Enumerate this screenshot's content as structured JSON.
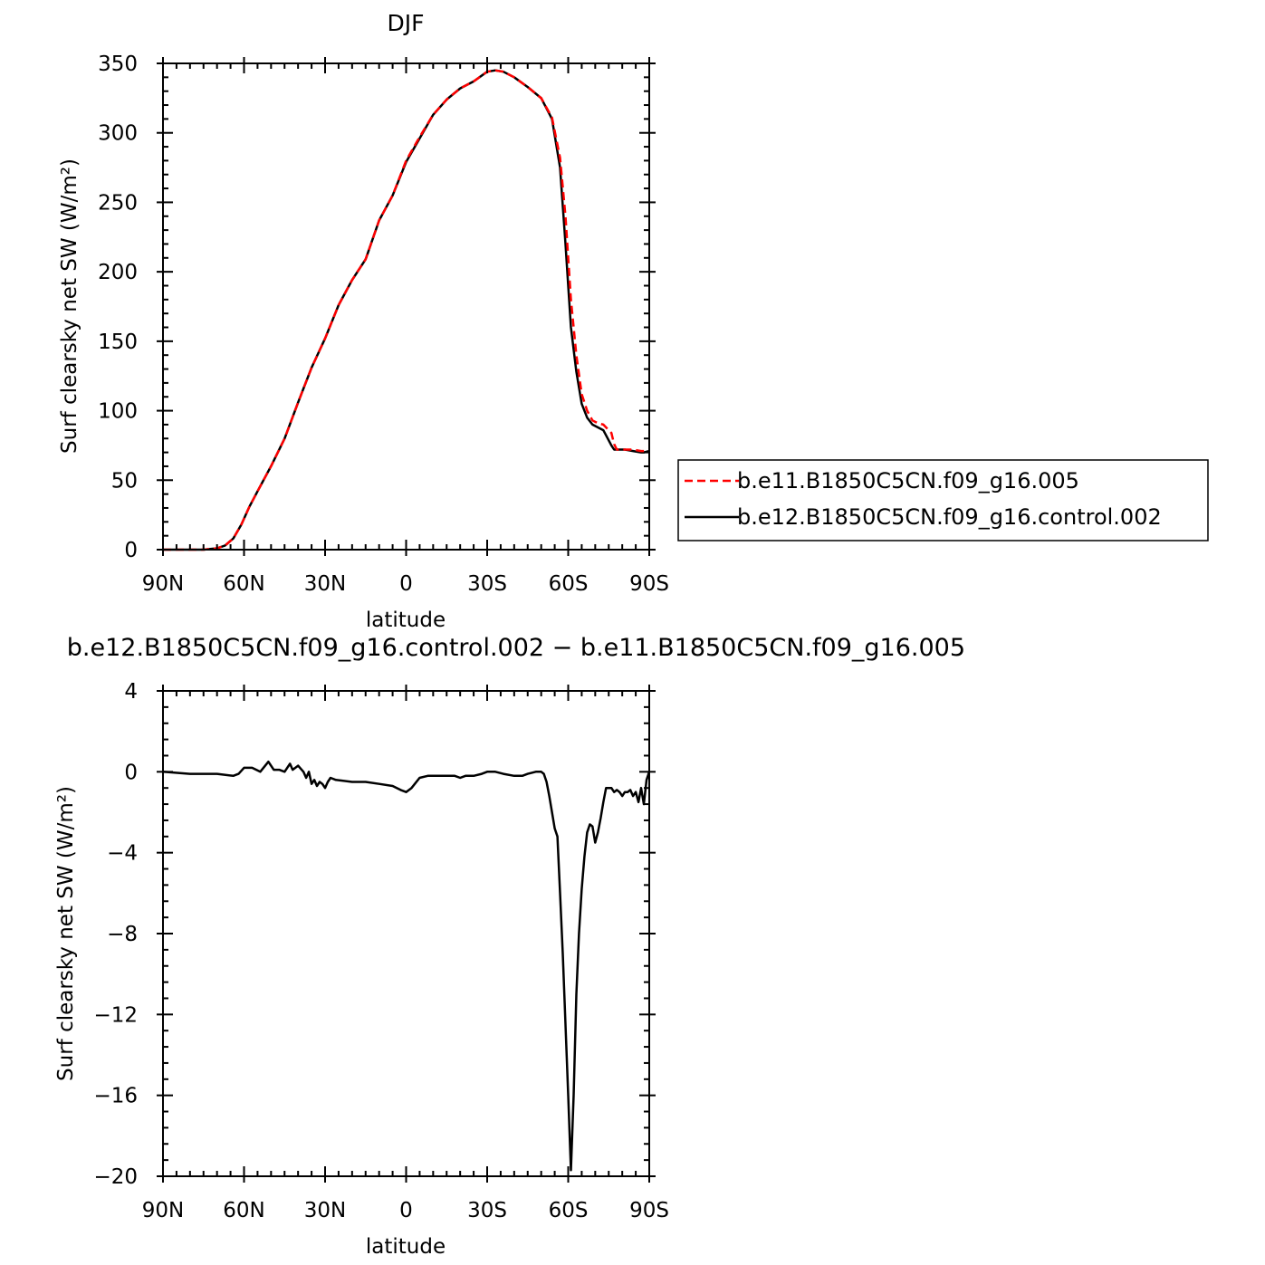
{
  "chart_data": [
    {
      "type": "line",
      "title": "DJF",
      "xlabel": "latitude",
      "ylabel": "Surf clearsky net SW (W/m²)",
      "xlim": [
        -90,
        90
      ],
      "ylim": [
        0,
        350
      ],
      "x_ticks": [
        -90,
        -60,
        -30,
        0,
        30,
        60,
        90
      ],
      "x_tick_labels": [
        "90N",
        "60N",
        "30N",
        "0",
        "30S",
        "60S",
        "90S"
      ],
      "y_ticks": [
        0,
        50,
        100,
        150,
        200,
        250,
        300,
        350
      ],
      "y_tick_labels": [
        "0",
        "50",
        "100",
        "150",
        "200",
        "250",
        "300",
        "350"
      ],
      "legend_position": "right",
      "series": [
        {
          "name": "b.e11.B1850C5CN.f09_g16.005",
          "color": "#ff0000",
          "dash": true,
          "x": [
            -90,
            -75,
            -70,
            -67,
            -64,
            -61,
            -58,
            -55,
            -50,
            -45,
            -40,
            -35,
            -30,
            -25,
            -20,
            -15,
            -10,
            -5,
            0,
            5,
            10,
            15,
            20,
            25,
            30,
            33,
            36,
            40,
            45,
            50,
            54,
            57,
            59,
            61,
            63,
            65,
            67,
            69,
            71,
            73,
            76,
            77,
            78,
            81,
            84,
            87,
            88,
            90
          ],
          "y": [
            0,
            0,
            1,
            3,
            8,
            18,
            31,
            42,
            60,
            80,
            106,
            131,
            152,
            176,
            194,
            209,
            237,
            255,
            280,
            297,
            313,
            324,
            332,
            337,
            344,
            345,
            344,
            340,
            333,
            325,
            311,
            282,
            240,
            180,
            140,
            112,
            100,
            93,
            91,
            90,
            84,
            76,
            72,
            72,
            72,
            71,
            71,
            71
          ]
        },
        {
          "name": "b.e12.B1850C5CN.f09_g16.control.002",
          "color": "#000000",
          "dash": false,
          "x": [
            -90,
            -75,
            -70,
            -67,
            -64,
            -61,
            -58,
            -55,
            -50,
            -45,
            -40,
            -35,
            -30,
            -25,
            -20,
            -15,
            -10,
            -5,
            0,
            5,
            10,
            15,
            20,
            25,
            30,
            33,
            36,
            40,
            45,
            50,
            54,
            57,
            59,
            61,
            63,
            65,
            67,
            69,
            71,
            73,
            76,
            77,
            78,
            81,
            84,
            87,
            88,
            90
          ],
          "y": [
            0,
            0,
            1,
            3,
            8,
            18,
            31,
            42,
            60,
            80,
            106,
            131,
            152,
            176,
            194,
            209,
            237,
            255,
            279,
            296,
            313,
            324,
            332,
            337,
            344,
            345,
            344,
            340,
            333,
            325,
            310,
            275,
            220,
            160,
            128,
            105,
            95,
            90,
            88,
            86,
            75,
            72,
            72,
            72,
            71,
            70,
            70,
            71
          ]
        }
      ]
    },
    {
      "type": "line",
      "title": "b.e12.B1850C5CN.f09_g16.control.002 − b.e11.B1850C5CN.f09_g16.005",
      "xlabel": "latitude",
      "ylabel": "Surf clearsky net SW (W/m²)",
      "xlim": [
        -90,
        90
      ],
      "ylim": [
        -20,
        4
      ],
      "x_ticks": [
        -90,
        -60,
        -30,
        0,
        30,
        60,
        90
      ],
      "x_tick_labels": [
        "90N",
        "60N",
        "30N",
        "0",
        "30S",
        "60S",
        "90S"
      ],
      "y_ticks": [
        -20,
        -16,
        -12,
        -8,
        -4,
        0,
        4
      ],
      "y_tick_labels": [
        "−20",
        "−16",
        "−12",
        "−8",
        "−4",
        "0",
        "4"
      ],
      "series": [
        {
          "color": "#000000",
          "x": [
            -90,
            -80,
            -70,
            -64,
            -62,
            -60,
            -57,
            -54,
            -51,
            -49,
            -47,
            -45,
            -43,
            -42,
            -40,
            -38,
            -37,
            -36,
            -35,
            -34,
            -33,
            -32,
            -31,
            -30,
            -29,
            -28,
            -26,
            -20,
            -15,
            -10,
            -5,
            -2,
            0,
            2,
            5,
            8,
            12,
            15,
            18,
            20,
            22,
            25,
            28,
            30,
            33,
            36,
            40,
            43,
            45,
            48,
            50,
            51,
            52,
            53,
            54,
            55,
            56,
            57,
            58,
            59,
            60,
            61,
            62,
            63,
            64,
            65,
            66,
            67,
            68,
            69,
            70,
            71,
            72,
            73,
            74,
            75,
            76,
            77,
            78,
            79,
            80,
            81,
            82,
            83,
            84,
            85,
            86,
            87,
            88,
            89,
            90
          ],
          "y": [
            0,
            -0.1,
            -0.1,
            -0.2,
            -0.1,
            0.2,
            0.2,
            0,
            0.5,
            0.1,
            0.1,
            0,
            0.4,
            0.1,
            0.3,
            0,
            -0.3,
            0,
            -0.6,
            -0.4,
            -0.7,
            -0.5,
            -0.6,
            -0.8,
            -0.5,
            -0.3,
            -0.4,
            -0.5,
            -0.5,
            -0.6,
            -0.7,
            -0.9,
            -1.0,
            -0.8,
            -0.3,
            -0.2,
            -0.2,
            -0.2,
            -0.2,
            -0.3,
            -0.2,
            -0.2,
            -0.1,
            0,
            0,
            -0.1,
            -0.2,
            -0.2,
            -0.1,
            0,
            0,
            -0.1,
            -0.5,
            -1.2,
            -2.0,
            -2.8,
            -3.2,
            -6.0,
            -9.0,
            -12.5,
            -16.0,
            -19.7,
            -16.0,
            -11.0,
            -8.0,
            -5.8,
            -4.2,
            -3.0,
            -2.6,
            -2.7,
            -3.5,
            -3.0,
            -2.3,
            -1.5,
            -0.8,
            -0.8,
            -0.8,
            -1.0,
            -0.9,
            -1.0,
            -1.2,
            -1.0,
            -1.0,
            -0.9,
            -1.2,
            -1.0,
            -1.5,
            -0.8,
            -1.6,
            -0.4,
            0
          ]
        }
      ]
    }
  ]
}
